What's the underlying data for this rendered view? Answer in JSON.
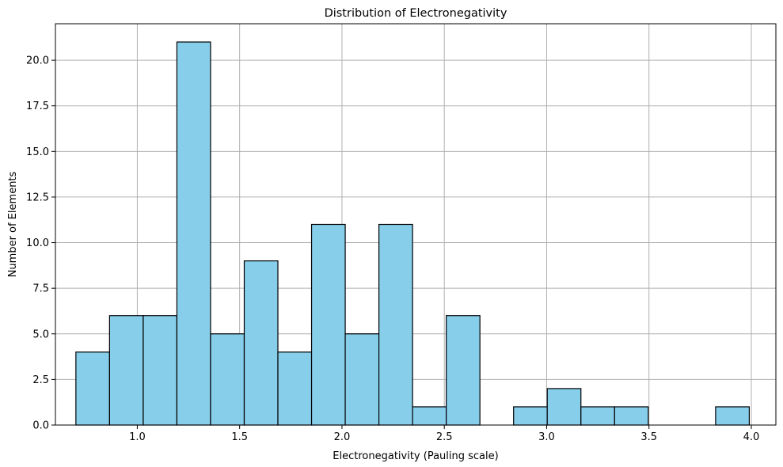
{
  "chart_data": {
    "type": "bar",
    "subtype": "histogram",
    "title": "Distribution of Electronegativity",
    "xlabel": "Electronegativity (Pauling scale)",
    "ylabel": "Number of Elements",
    "xlim": [
      0.6,
      4.12
    ],
    "ylim": [
      0,
      22
    ],
    "grid": true,
    "bar_color": "#87ceeb",
    "edge_color": "#000000",
    "grid_color": "#b0b0b0",
    "bin_edges": [
      0.7,
      0.8645,
      1.029,
      1.1935,
      1.358,
      1.5225,
      1.687,
      1.8515,
      2.016,
      2.1805,
      2.345,
      2.5095,
      2.674,
      2.8385,
      3.003,
      3.1675,
      3.332,
      3.4965,
      3.661,
      3.8255,
      3.99
    ],
    "counts": [
      4,
      6,
      6,
      21,
      5,
      9,
      4,
      11,
      5,
      11,
      1,
      6,
      0,
      1,
      2,
      1,
      1,
      0,
      0,
      1
    ],
    "x_ticks": [
      1.0,
      1.5,
      2.0,
      2.5,
      3.0,
      3.5,
      4.0
    ],
    "x_tick_labels": [
      "1.0",
      "1.5",
      "2.0",
      "2.5",
      "3.0",
      "3.5",
      "4.0"
    ],
    "y_ticks": [
      0,
      2.5,
      5,
      7.5,
      10,
      12.5,
      15,
      17.5,
      20
    ],
    "y_tick_labels": [
      "0.0",
      "2.5",
      "5.0",
      "7.5",
      "10.0",
      "12.5",
      "15.0",
      "17.5",
      "20.0"
    ]
  }
}
